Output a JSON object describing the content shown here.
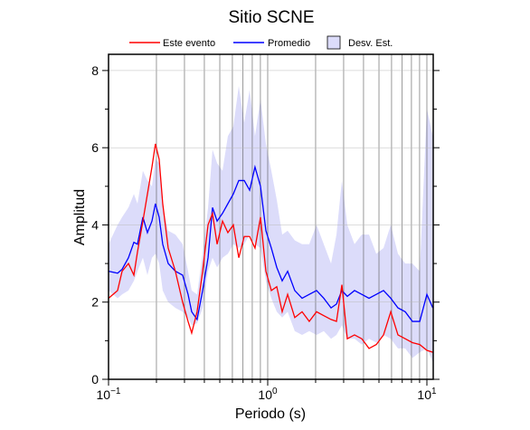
{
  "chart_data": {
    "type": "line",
    "title": "Sitio SCNE",
    "xlabel": "Periodo (s)",
    "ylabel": "Amplitud",
    "log_x": true,
    "legend": "top",
    "x": [
      0.1,
      0.114,
      0.1217,
      0.1334,
      0.1443,
      0.152,
      0.1644,
      0.1755,
      0.1874,
      0.197,
      0.208,
      0.219,
      0.237,
      0.263,
      0.292,
      0.316,
      0.333,
      0.36,
      0.39,
      0.422,
      0.45,
      0.481,
      0.52,
      0.562,
      0.608,
      0.658,
      0.712,
      0.77,
      0.832,
      0.901,
      0.974,
      1.054,
      1.14,
      1.233,
      1.334,
      1.479,
      1.644,
      1.824,
      2.027,
      2.25,
      2.5,
      2.704,
      2.924,
      3.162,
      3.51,
      3.9,
      4.33,
      4.81,
      5.34,
      5.93,
      6.58,
      7.31,
      8.11,
      9.02,
      10.0,
      10.9
    ],
    "series": [
      {
        "name": "Este evento",
        "color": "#ff0000",
        "values": [
          2.1,
          2.3,
          2.8,
          3.0,
          2.7,
          3.3,
          4.1,
          4.8,
          5.5,
          6.1,
          5.7,
          4.55,
          3.4,
          2.8,
          2.0,
          1.5,
          1.2,
          1.75,
          2.8,
          4.0,
          4.3,
          3.5,
          4.1,
          3.8,
          4.0,
          3.15,
          3.7,
          3.7,
          3.4,
          4.2,
          2.8,
          2.3,
          2.4,
          1.75,
          2.2,
          1.6,
          1.75,
          1.5,
          1.75,
          1.65,
          1.55,
          1.5,
          2.45,
          1.05,
          1.15,
          1.05,
          0.8,
          0.9,
          1.15,
          1.75,
          1.15,
          1.05,
          0.95,
          0.9,
          0.75,
          0.7
        ]
      },
      {
        "name": "Promedio",
        "color": "#0000ff",
        "values": [
          2.8,
          2.75,
          2.85,
          3.15,
          3.55,
          3.5,
          4.2,
          3.8,
          4.1,
          4.55,
          4.2,
          3.5,
          3.0,
          2.8,
          2.7,
          2.2,
          1.75,
          1.55,
          2.3,
          3.15,
          4.45,
          4.1,
          4.3,
          4.55,
          4.8,
          5.15,
          5.15,
          4.9,
          5.5,
          5.0,
          3.85,
          3.4,
          2.9,
          2.55,
          2.8,
          2.3,
          2.1,
          2.2,
          2.3,
          2.1,
          1.85,
          1.95,
          2.3,
          2.15,
          2.3,
          2.2,
          2.1,
          2.2,
          2.3,
          2.1,
          1.85,
          1.75,
          1.5,
          1.5,
          2.2,
          1.85
        ]
      }
    ],
    "band": {
      "name": "Desv. Est.",
      "color": "#dcdcfa",
      "upper": [
        3.5,
        4.0,
        4.2,
        4.45,
        4.8,
        4.55,
        5.4,
        5.15,
        5.0,
        5.7,
        5.6,
        4.45,
        3.85,
        3.75,
        3.5,
        2.8,
        2.3,
        2.2,
        3.25,
        4.45,
        5.95,
        5.6,
        5.4,
        6.3,
        6.55,
        7.6,
        6.65,
        7.5,
        6.3,
        7.25,
        6.1,
        5.4,
        4.65,
        3.75,
        3.85,
        3.6,
        3.5,
        3.5,
        4.0,
        3.5,
        3.0,
        3.75,
        5.15,
        4.0,
        3.5,
        3.75,
        3.75,
        3.25,
        3.4,
        4.0,
        3.25,
        3.0,
        3.0,
        2.8,
        7.0,
        6.3
      ],
      "lower": [
        2.3,
        2.1,
        2.2,
        2.3,
        2.55,
        2.8,
        3.15,
        2.7,
        3.15,
        3.25,
        3.0,
        2.3,
        2.0,
        1.85,
        1.75,
        1.6,
        1.4,
        1.45,
        1.85,
        2.8,
        3.15,
        2.9,
        3.15,
        3.25,
        3.5,
        3.4,
        3.5,
        3.75,
        3.5,
        3.4,
        2.55,
        2.1,
        1.75,
        1.6,
        1.75,
        1.25,
        1.15,
        1.25,
        1.15,
        1.25,
        1.05,
        1.15,
        1.4,
        1.05,
        1.05,
        0.9,
        1.05,
        0.95,
        1.15,
        1.05,
        0.8,
        0.8,
        0.55,
        0.7,
        0.8,
        0.45
      ]
    },
    "xlim": [
      0.1,
      10.96
    ],
    "ylim": [
      0,
      8.42
    ],
    "xticks": [
      {
        "value": 0.1,
        "label": "10",
        "exponent": "−1"
      },
      {
        "value": 1,
        "label": "10",
        "exponent": "0"
      },
      {
        "value": 10,
        "label": "10",
        "exponent": "1"
      }
    ],
    "xgrid": [
      0.2,
      0.3,
      0.4,
      0.5,
      0.6,
      0.7,
      0.8,
      0.9,
      2,
      3,
      4,
      5,
      6,
      7,
      8,
      9
    ],
    "yticks": [
      0,
      2,
      4,
      6,
      8
    ],
    "yminor": [
      1,
      3,
      5,
      7
    ],
    "grid": true
  }
}
